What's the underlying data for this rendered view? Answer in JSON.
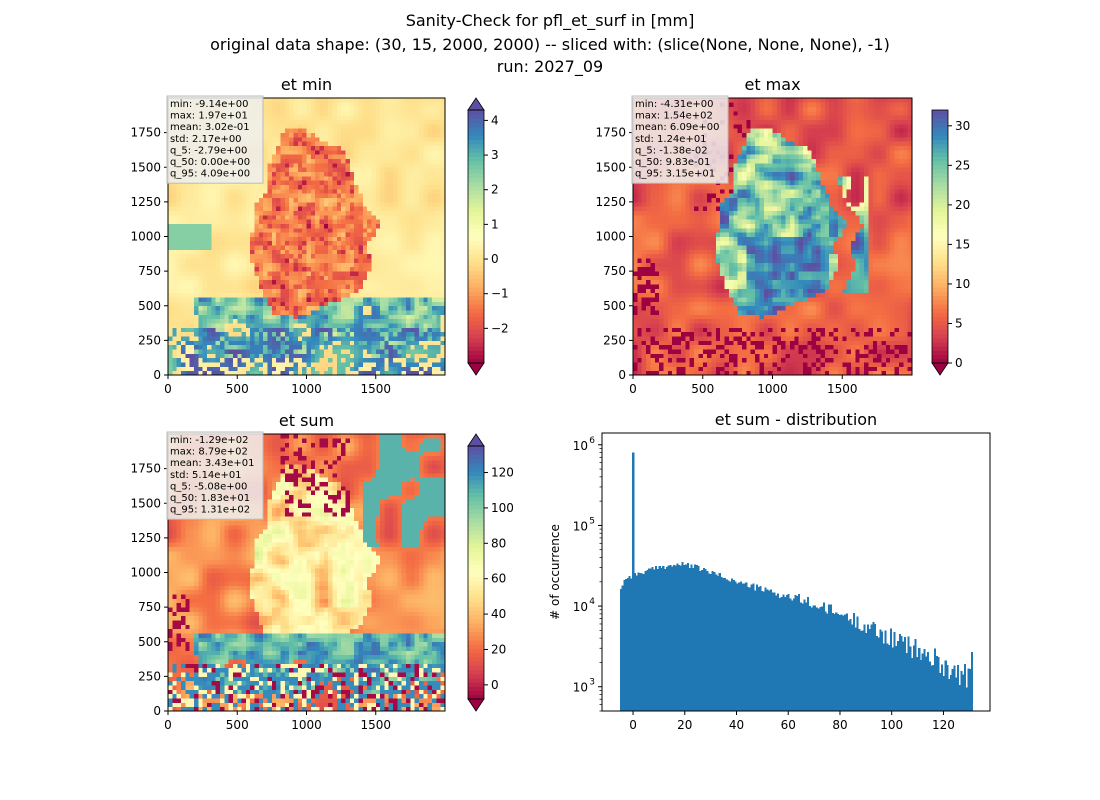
{
  "suptitle": {
    "line1": "Sanity-Check for pfl_et_surf in [mm]",
    "line2": "original data shape: (30, 15, 2000, 2000) -- sliced with: (slice(None, None, None), -1)",
    "line3": "run: 2027_09"
  },
  "map_axes": {
    "xlim": [
      0,
      2000
    ],
    "ylim": [
      0,
      2000
    ],
    "xticks": [
      0,
      500,
      1000,
      1500
    ],
    "yticks": [
      0,
      250,
      500,
      750,
      1000,
      1250,
      1500,
      1750
    ],
    "origin": "lower"
  },
  "chart_data": [
    {
      "type": "heatmap",
      "title": "et min",
      "colormap": "Spectral",
      "colors": [
        "#9e0142",
        "#d53e4f",
        "#f46d43",
        "#fdae61",
        "#fee08b",
        "#ffffbf",
        "#e6f598",
        "#abdda4",
        "#66c2a5",
        "#3288bd",
        "#5e4fa2"
      ],
      "clim": [
        -3,
        4.3
      ],
      "colorbar_ticks": [
        -2,
        -1,
        0,
        1,
        2,
        3,
        4
      ],
      "colorbar_ticklabels": [
        "−2",
        "−1",
        "0",
        "1",
        "2",
        "3",
        "4"
      ],
      "colorbar_extend": "both",
      "stats": [
        "min: -9.14e+00",
        "max: 1.97e+01",
        "mean: 3.02e-01",
        "std: 2.17e+00",
        "q_5: -2.79e+00",
        "q_50: 0.00e+00",
        "q_95: 4.09e+00"
      ]
    },
    {
      "type": "heatmap",
      "title": "et max",
      "colormap": "Spectral",
      "colors": [
        "#9e0142",
        "#d53e4f",
        "#f46d43",
        "#fdae61",
        "#fee08b",
        "#ffffbf",
        "#e6f598",
        "#abdda4",
        "#66c2a5",
        "#3288bd",
        "#5e4fa2"
      ],
      "clim": [
        0,
        32
      ],
      "colorbar_ticks": [
        0,
        5,
        10,
        15,
        20,
        25,
        30
      ],
      "colorbar_ticklabels": [
        "0",
        "5",
        "10",
        "15",
        "20",
        "25",
        "30"
      ],
      "colorbar_extend": "min",
      "stats": [
        "min: -4.31e+00",
        "max: 1.54e+02",
        "mean: 6.09e+00",
        "std: 1.24e+01",
        "q_5: -1.38e-02",
        "q_50: 9.83e-01",
        "q_95: 3.15e+01"
      ]
    },
    {
      "type": "heatmap",
      "title": "et sum",
      "colormap": "Spectral",
      "colors": [
        "#9e0142",
        "#d53e4f",
        "#f46d43",
        "#fdae61",
        "#fee08b",
        "#ffffbf",
        "#e6f598",
        "#abdda4",
        "#66c2a5",
        "#3288bd",
        "#5e4fa2"
      ],
      "clim": [
        -8,
        135
      ],
      "colorbar_ticks": [
        0,
        20,
        40,
        60,
        80,
        100,
        120
      ],
      "colorbar_ticklabels": [
        "0",
        "20",
        "40",
        "60",
        "80",
        "100",
        "120"
      ],
      "colorbar_extend": "both",
      "stats": [
        "min: -1.29e+02",
        "max: 8.79e+02",
        "mean: 3.43e+01",
        "std: 5.14e+01",
        "q_5: -5.08e+00",
        "q_50: 1.83e+01",
        "q_95: 1.31e+02"
      ]
    },
    {
      "type": "bar",
      "title": "et sum - distribution",
      "ylabel": "# of occurrence",
      "yscale": "log",
      "xlim": [
        -12,
        138
      ],
      "ylim": [
        500,
        1400000
      ],
      "xticks": [
        0,
        20,
        40,
        60,
        80,
        100,
        120
      ],
      "ytick_labels": [
        {
          "value": 1000,
          "base": "10",
          "exp": "3"
        },
        {
          "value": 10000,
          "base": "10",
          "exp": "4"
        },
        {
          "value": 100000,
          "base": "10",
          "exp": "5"
        },
        {
          "value": 1000000,
          "base": "10",
          "exp": "6"
        }
      ],
      "bar_color": "#1f77b4",
      "bins": {
        "start": -5.1,
        "end": 131.4,
        "count": 200
      },
      "peak": {
        "x": 0,
        "value": 800000
      },
      "control_points": [
        [
          -5.1,
          16000
        ],
        [
          -3,
          22000
        ],
        [
          0,
          24000
        ],
        [
          5,
          27000
        ],
        [
          10,
          30000
        ],
        [
          15,
          32000
        ],
        [
          20,
          33000
        ],
        [
          25,
          30000
        ],
        [
          30,
          26000
        ],
        [
          35,
          23000
        ],
        [
          40,
          20000
        ],
        [
          45,
          18000
        ],
        [
          50,
          16000
        ],
        [
          55,
          14500
        ],
        [
          60,
          13000
        ],
        [
          65,
          12000
        ],
        [
          70,
          10500
        ],
        [
          75,
          9000
        ],
        [
          80,
          8000
        ],
        [
          85,
          6800
        ],
        [
          90,
          5800
        ],
        [
          95,
          4700
        ],
        [
          100,
          4000
        ],
        [
          105,
          3400
        ],
        [
          110,
          2800
        ],
        [
          115,
          2300
        ],
        [
          120,
          1900
        ],
        [
          125,
          1500
        ],
        [
          131.4,
          1300
        ]
      ]
    }
  ]
}
